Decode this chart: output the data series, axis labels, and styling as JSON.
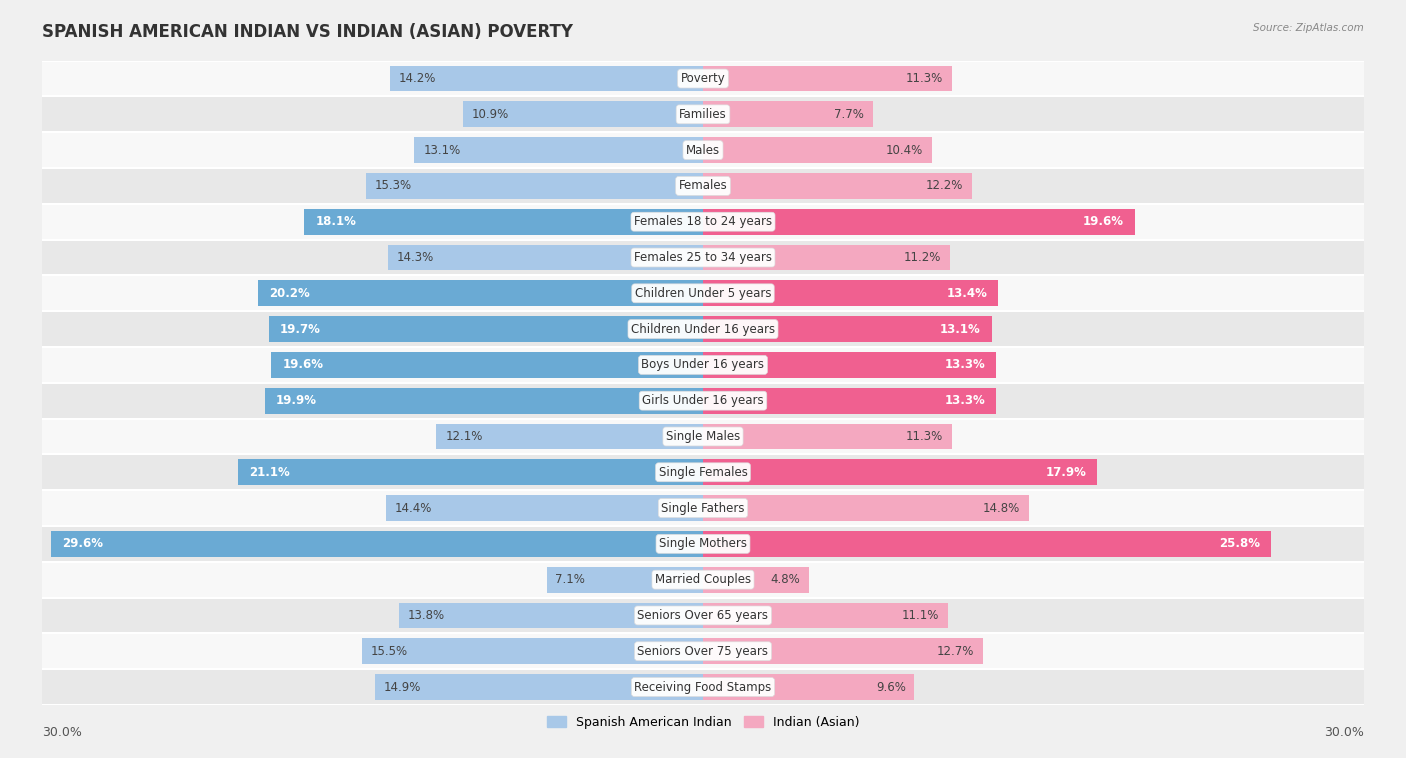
{
  "title": "SPANISH AMERICAN INDIAN VS INDIAN (ASIAN) POVERTY",
  "source": "Source: ZipAtlas.com",
  "categories": [
    "Poverty",
    "Families",
    "Males",
    "Females",
    "Females 18 to 24 years",
    "Females 25 to 34 years",
    "Children Under 5 years",
    "Children Under 16 years",
    "Boys Under 16 years",
    "Girls Under 16 years",
    "Single Males",
    "Single Females",
    "Single Fathers",
    "Single Mothers",
    "Married Couples",
    "Seniors Over 65 years",
    "Seniors Over 75 years",
    "Receiving Food Stamps"
  ],
  "left_values": [
    14.2,
    10.9,
    13.1,
    15.3,
    18.1,
    14.3,
    20.2,
    19.7,
    19.6,
    19.9,
    12.1,
    21.1,
    14.4,
    29.6,
    7.1,
    13.8,
    15.5,
    14.9
  ],
  "right_values": [
    11.3,
    7.7,
    10.4,
    12.2,
    19.6,
    11.2,
    13.4,
    13.1,
    13.3,
    13.3,
    11.3,
    17.9,
    14.8,
    25.8,
    4.8,
    11.1,
    12.7,
    9.6
  ],
  "left_color": "#a8c8e8",
  "right_color": "#f4a8c0",
  "highlight_left_color": "#6aaad4",
  "highlight_right_color": "#f06090",
  "highlight_rows": [
    4,
    6,
    7,
    8,
    9,
    11,
    13
  ],
  "bar_height": 0.72,
  "background_color": "#f0f0f0",
  "row_bg_even": "#f8f8f8",
  "row_bg_odd": "#e8e8e8",
  "xlim": 30.0,
  "legend_left": "Spanish American Indian",
  "legend_right": "Indian (Asian)",
  "title_fontsize": 12,
  "label_fontsize": 9,
  "value_fontsize": 8.5,
  "cat_fontsize": 8.5
}
